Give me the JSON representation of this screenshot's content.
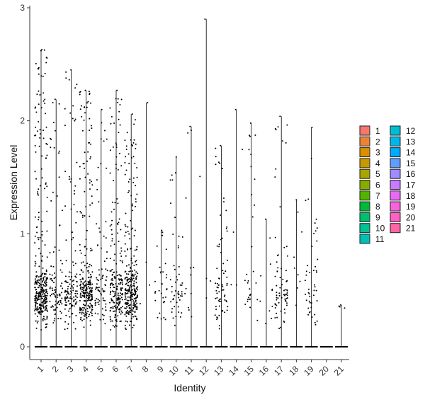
{
  "chart_data": {
    "type": "scatter",
    "subtype": "violin-jitter",
    "title": "",
    "xlabel": "Identity",
    "ylabel": "Expression Level",
    "ylim": [
      0,
      3
    ],
    "yticks": [
      "0",
      "1",
      "2",
      "3"
    ],
    "categories": [
      "1",
      "2",
      "3",
      "4",
      "5",
      "6",
      "7",
      "8",
      "9",
      "10",
      "11",
      "12",
      "13",
      "14",
      "15",
      "16",
      "17",
      "18",
      "19",
      "20",
      "21"
    ],
    "max_values": [
      2.63,
      2.19,
      2.45,
      2.27,
      2.1,
      2.27,
      2.06,
      2.16,
      1.03,
      1.68,
      1.95,
      2.9,
      1.78,
      2.1,
      1.98,
      1.13,
      2.04,
      1.3,
      1.94,
      0.0,
      0.37
    ],
    "detected_counts": [
      330,
      90,
      130,
      260,
      80,
      200,
      280,
      3,
      30,
      50,
      12,
      4,
      70,
      4,
      30,
      10,
      70,
      8,
      45,
      0,
      3
    ],
    "legend": {
      "position": "right",
      "columns": 2,
      "entries": [
        {
          "label": "1",
          "color": "#F8766D"
        },
        {
          "label": "2",
          "color": "#EB8335"
        },
        {
          "label": "3",
          "color": "#DA8F00"
        },
        {
          "label": "4",
          "color": "#C49A00"
        },
        {
          "label": "5",
          "color": "#A9A400"
        },
        {
          "label": "6",
          "color": "#86AC00"
        },
        {
          "label": "7",
          "color": "#53B400"
        },
        {
          "label": "8",
          "color": "#00BA38"
        },
        {
          "label": "9",
          "color": "#00BE6D"
        },
        {
          "label": "10",
          "color": "#00C094"
        },
        {
          "label": "11",
          "color": "#00C0B5"
        },
        {
          "label": "12",
          "color": "#00BDD2"
        },
        {
          "label": "13",
          "color": "#00B6EB"
        },
        {
          "label": "14",
          "color": "#00ABFD"
        },
        {
          "label": "15",
          "color": "#619CFF"
        },
        {
          "label": "16",
          "color": "#9F8CFF"
        },
        {
          "label": "17",
          "color": "#C77CFF"
        },
        {
          "label": "18",
          "color": "#E76BF3"
        },
        {
          "label": "19",
          "color": "#F962DD"
        },
        {
          "label": "20",
          "color": "#FF61C3"
        },
        {
          "label": "21",
          "color": "#FF65A7"
        }
      ]
    },
    "grid": false
  }
}
